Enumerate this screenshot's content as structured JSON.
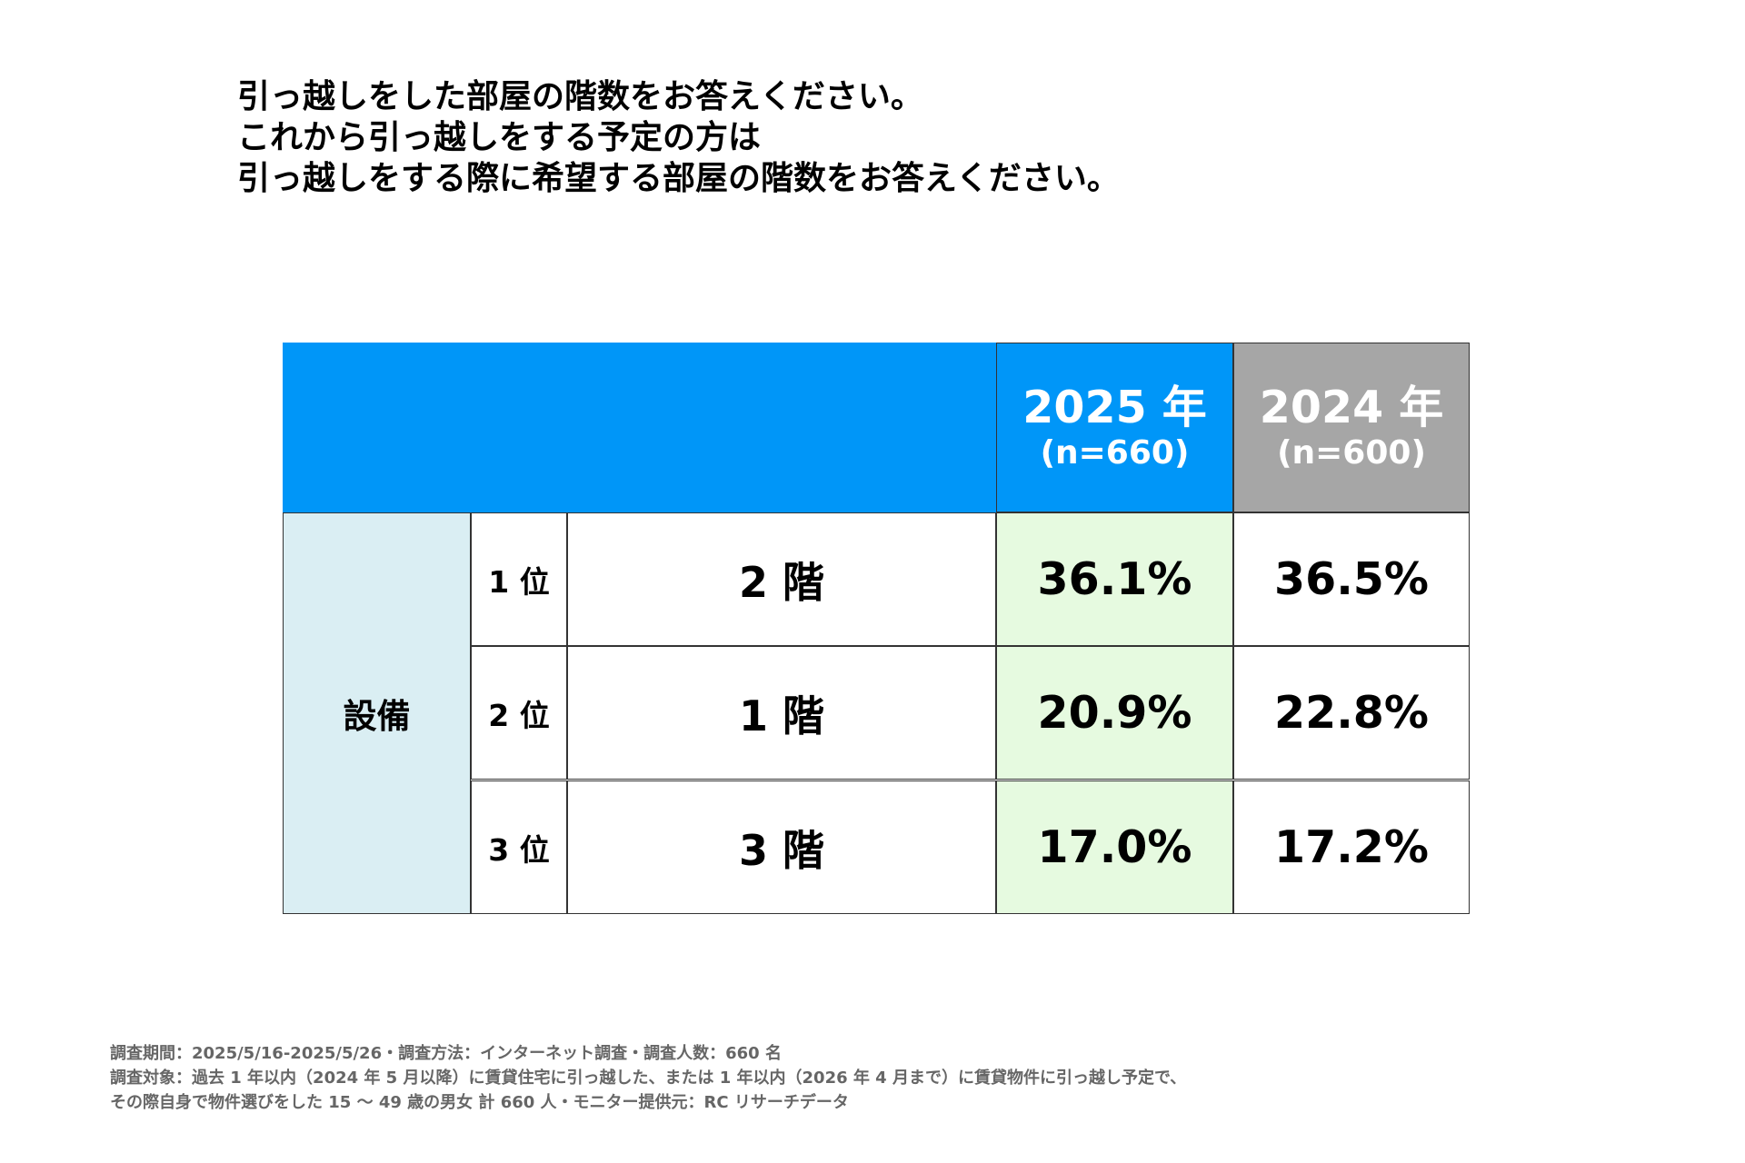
{
  "title": {
    "lines": [
      "引っ越しをした部屋の階数をお答えください。",
      "これから引っ越しをする予定の方は",
      "引っ越しをする際に希望する部屋の階数をお答えください。"
    ]
  },
  "table": {
    "colors": {
      "header_2025": "#0096F8",
      "header_2024": "#A6A6A6",
      "category_bg": "#DAEEF3",
      "highlight_2025": "#E6FAE0"
    },
    "columns": [
      {
        "year": "2025 年",
        "n": "(n=660)"
      },
      {
        "year": "2024 年",
        "n": "(n=600)"
      }
    ],
    "category": "設備",
    "rows": [
      {
        "rank": "1 位",
        "item": "2 階",
        "v2025": "36.1%",
        "v2024": "36.5%"
      },
      {
        "rank": "2 位",
        "item": "1 階",
        "v2025": "20.9%",
        "v2024": "22.8%"
      },
      {
        "rank": "3 位",
        "item": "3 階",
        "v2025": "17.0%",
        "v2024": "17.2%"
      }
    ]
  },
  "footer": {
    "lines": [
      "調査期間：2025/5/16-2025/5/26・調査方法：インターネット調査・調査人数：660 名",
      "調査対象：過去 1 年以内（2024 年 5 月以降）に賃貸住宅に引っ越した、または 1 年以内（2026 年 4 月まで）に賃貸物件に引っ越し予定で、",
      "その際自身で物件選びをした 15 ～ 49 歳の男女 計 660 人・モニター提供元：RC リサーチデータ"
    ]
  }
}
